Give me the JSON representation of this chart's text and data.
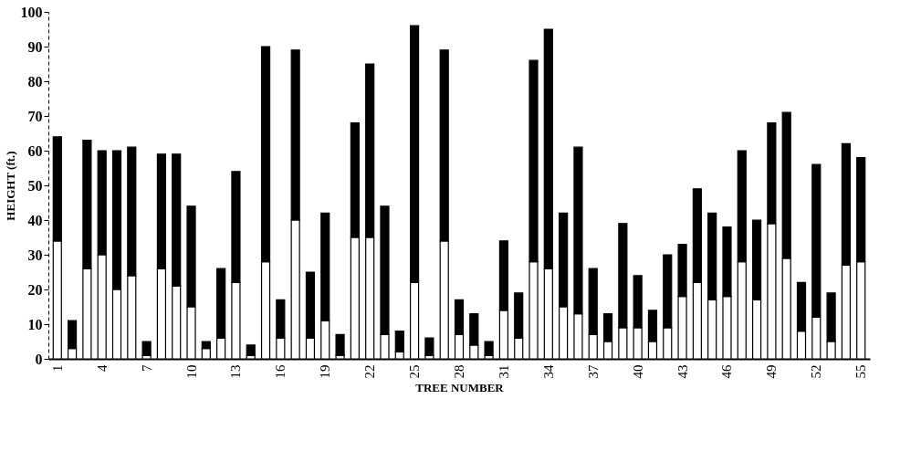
{
  "chart_data": {
    "type": "bar",
    "stacked": true,
    "xlabel": "TREE NUMBER",
    "ylabel": "HEIGHT (ft.)",
    "categories": [
      "1",
      null,
      null,
      "4",
      null,
      null,
      "7",
      null,
      null,
      "10",
      null,
      null,
      "13",
      null,
      null,
      "16",
      null,
      null,
      "19",
      null,
      null,
      "22",
      null,
      null,
      "25",
      null,
      null,
      "28",
      null,
      null,
      "31",
      null,
      null,
      "34",
      null,
      null,
      "37",
      null,
      null,
      "40",
      null,
      null,
      "43",
      null,
      null,
      "46",
      null,
      null,
      "49",
      null,
      null,
      "52",
      null,
      null,
      "55"
    ],
    "series": [
      {
        "color": "#ffffff",
        "values": [
          34,
          3,
          26,
          30,
          20,
          24,
          1,
          26,
          21,
          15,
          3,
          6,
          22,
          1,
          28,
          6,
          40,
          6,
          11,
          1,
          35,
          35,
          7,
          2,
          22,
          1,
          34,
          7,
          4,
          1,
          14,
          6,
          28,
          26,
          15,
          13,
          7,
          5,
          9,
          9,
          5,
          9,
          18,
          22,
          17,
          18,
          28,
          17,
          39,
          29,
          8,
          12,
          5,
          27,
          28
        ]
      },
      {
        "color": "#000000",
        "values": [
          30,
          8,
          37,
          30,
          40,
          37,
          4,
          33,
          38,
          29,
          2,
          20,
          32,
          3,
          62,
          11,
          49,
          19,
          31,
          6,
          33,
          50,
          37,
          6,
          74,
          5,
          55,
          10,
          9,
          4,
          20,
          13,
          58,
          69,
          27,
          48,
          19,
          8,
          30,
          15,
          9,
          21,
          15,
          27,
          25,
          20,
          32,
          23,
          29,
          42,
          14,
          44,
          14,
          35,
          30
        ]
      }
    ],
    "ylim": [
      0,
      100
    ],
    "yticks": [
      0,
      10,
      20,
      30,
      40,
      50,
      60,
      70,
      80,
      90,
      100
    ],
    "grid": false
  }
}
